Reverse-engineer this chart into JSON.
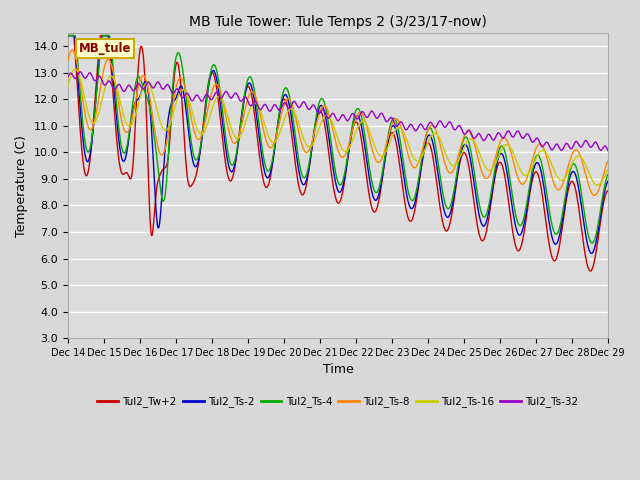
{
  "title": "MB Tule Tower: Tule Temps 2 (3/23/17-now)",
  "xlabel": "Time",
  "ylabel": "Temperature (C)",
  "ylim": [
    3.0,
    14.5
  ],
  "yticks": [
    3.0,
    4.0,
    5.0,
    6.0,
    7.0,
    8.0,
    9.0,
    10.0,
    11.0,
    12.0,
    13.0,
    14.0
  ],
  "background_color": "#e0e0e0",
  "plot_bg_color": "#e8e8e8",
  "grid_color": "#ffffff",
  "series_colors": {
    "Tul2_Tw+2": "#cc0000",
    "Tul2_Ts-2": "#0000cc",
    "Tul2_Ts-4": "#00aa00",
    "Tul2_Ts-8": "#ff8800",
    "Tul2_Ts-16": "#cccc00",
    "Tul2_Ts-32": "#9900cc"
  },
  "legend_label": "MB_tule",
  "legend_label_color": "#8b0000",
  "legend_bg": "#ffffcc",
  "legend_border": "#ccaa00",
  "n_points": 1500,
  "x_start": 0,
  "x_end": 15,
  "xtick_labels": [
    "Dec 14",
    "Dec 15",
    "Dec 16",
    "Dec 17",
    "Dec 18",
    "Dec 19",
    "Dec 20",
    "Dec 21",
    "Dec 22",
    "Dec 23",
    "Dec 24",
    "Dec 25",
    "Dec 26",
    "Dec 27",
    "Dec 28",
    "Dec 29"
  ],
  "xtick_positions": [
    0,
    1,
    2,
    3,
    4,
    5,
    6,
    7,
    8,
    9,
    10,
    11,
    12,
    13,
    14,
    15
  ]
}
